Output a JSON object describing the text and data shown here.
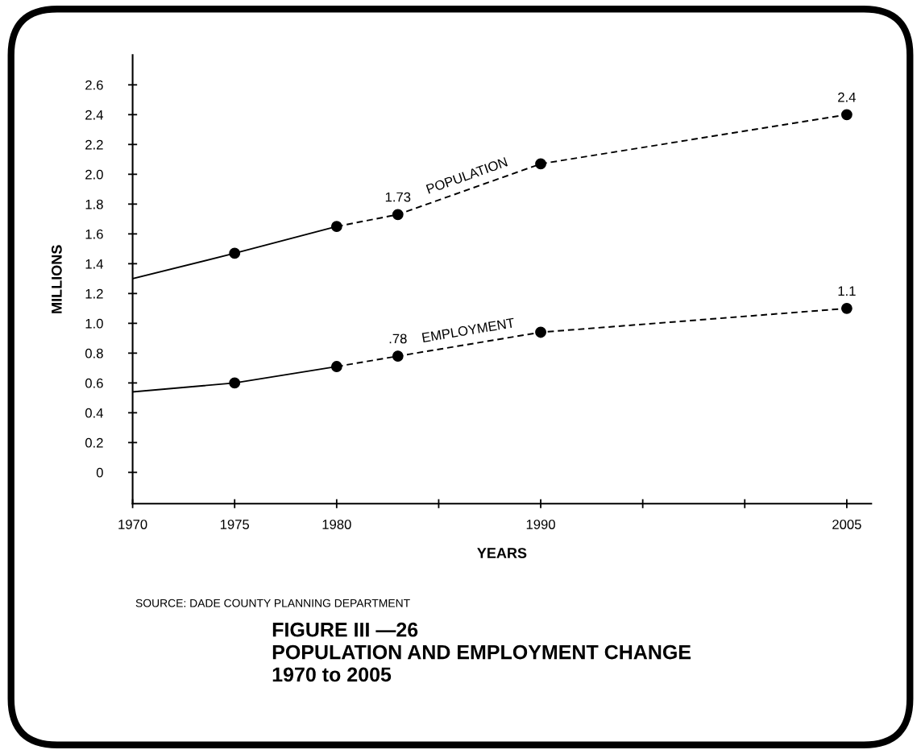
{
  "chart_data": {
    "type": "line",
    "title": "FIGURE III —26\nPOPULATION AND EMPLOYMENT CHANGE\n1970 to 2005",
    "xlabel": "YEARS",
    "ylabel": "MILLIONS",
    "annotations": [
      "SOURCE: DADE COUNTY PLANNING DEPARTMENT"
    ],
    "xlim": [
      1970,
      2006.2
    ],
    "ylim": [
      -0.21,
      2.8
    ],
    "xticks": [
      1970,
      1975,
      1980,
      {
        "value": 1985,
        "label": null
      },
      1990,
      {
        "value": 1995,
        "label": null
      },
      {
        "value": 2000,
        "label": null
      },
      2005
    ],
    "yticks": [
      0,
      0.2,
      0.4,
      0.6,
      0.8,
      {
        "value": 1,
        "label": "1.0"
      },
      1.2,
      1.4,
      1.6,
      1.8,
      {
        "value": 2,
        "label": "2.0"
      },
      2.2,
      2.4,
      2.6
    ],
    "series": [
      {
        "x": [
          1970,
          1975,
          1980
        ],
        "values": [
          1.3,
          1.47,
          1.65
        ],
        "color": "#000000",
        "line_style": "solid",
        "marker": "none"
      },
      {
        "x": [
          1980,
          1983,
          1990,
          2005
        ],
        "values": [
          1.65,
          1.73,
          2.07,
          2.4
        ],
        "color": "#000000",
        "line_style": "dashed",
        "marker": "none"
      },
      {
        "type": "scatter",
        "name": "POPULATION",
        "x": [
          1975,
          1980,
          1983,
          1990,
          2005
        ],
        "values": [
          1.47,
          1.65,
          1.73,
          2.07,
          2.4
        ],
        "value_labels": [
          null,
          null,
          "1.73",
          null,
          "2.4"
        ],
        "color": "#000000",
        "marker": "circle"
      },
      {
        "x": [
          1970,
          1975,
          1980
        ],
        "values": [
          0.54,
          0.6,
          0.71
        ],
        "color": "#000000",
        "line_style": "solid",
        "marker": "none"
      },
      {
        "x": [
          1980,
          1983,
          1990,
          2005
        ],
        "values": [
          0.71,
          0.78,
          0.94,
          1.1
        ],
        "color": "#000000",
        "line_style": "dashed",
        "marker": "none"
      },
      {
        "type": "scatter",
        "name": "EMPLOYMENT",
        "x": [
          1975,
          1980,
          1983,
          1990,
          2005
        ],
        "values": [
          0.6,
          0.71,
          0.78,
          0.94,
          1.1
        ],
        "value_labels": [
          null,
          null,
          ".78",
          null,
          "1.1"
        ],
        "color": "#000000",
        "marker": "circle"
      }
    ]
  }
}
